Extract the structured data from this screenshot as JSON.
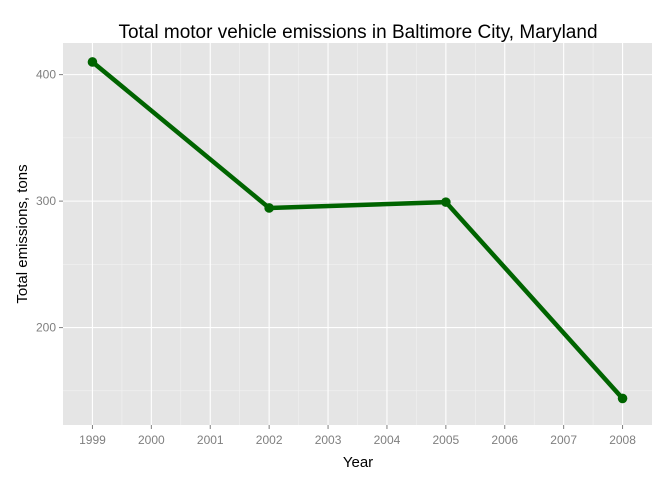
{
  "chart_data": {
    "type": "line",
    "title": "Total motor vehicle emissions in Baltimore City, Maryland",
    "xlabel": "Year",
    "ylabel": "Total emissions, tons",
    "x": [
      1999,
      2002,
      2005,
      2008
    ],
    "series": [
      {
        "values": [
          410.0,
          294.6,
          299.2,
          144.0
        ],
        "color": "#006400"
      }
    ],
    "xlim": [
      1998.5,
      2008.5
    ],
    "ylim": [
      123,
      425
    ],
    "xticks": [
      1999,
      2000,
      2001,
      2002,
      2003,
      2004,
      2005,
      2006,
      2007,
      2008
    ],
    "yticks": [
      200,
      300,
      400
    ],
    "grid": true,
    "legend": "none",
    "colors": {
      "panel": "#e5e5e5",
      "grid_major": "#ffffff",
      "grid_minor": "#f2f2f2",
      "tick_text": "#7f7f7f"
    }
  }
}
